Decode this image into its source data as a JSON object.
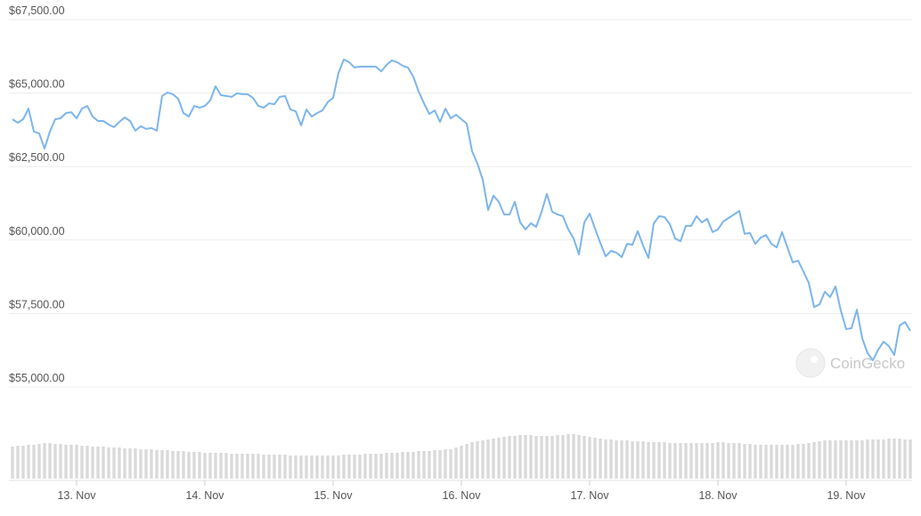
{
  "chart_data": {
    "type": "line",
    "series": [
      {
        "name": "Price",
        "color": "#7cb5ec",
        "values": [
          64110,
          63990,
          64110,
          64470,
          63690,
          63630,
          63110,
          63690,
          64110,
          64140,
          64320,
          64350,
          64140,
          64470,
          64560,
          64200,
          64050,
          64050,
          63930,
          63840,
          64020,
          64170,
          64050,
          63720,
          63870,
          63780,
          63810,
          63720,
          64900,
          65020,
          64960,
          64810,
          64320,
          64200,
          64560,
          64500,
          64560,
          64750,
          65230,
          64930,
          64900,
          64870,
          64990,
          64960,
          64960,
          64840,
          64560,
          64500,
          64650,
          64620,
          64870,
          64900,
          64440,
          64380,
          63900,
          64440,
          64200,
          64320,
          64410,
          64690,
          64840,
          65680,
          66140,
          66050,
          65870,
          65900,
          65900,
          65900,
          65900,
          65740,
          65960,
          66110,
          66050,
          65930,
          65870,
          65560,
          65050,
          64650,
          64290,
          64410,
          64020,
          64470,
          64140,
          64260,
          64110,
          63960,
          63020,
          62600,
          62050,
          61020,
          61510,
          61300,
          60870,
          60870,
          61300,
          60600,
          60360,
          60570,
          60450,
          60960,
          61570,
          60960,
          60870,
          60810,
          60360,
          60050,
          59510,
          60600,
          60900,
          60390,
          59900,
          59450,
          59630,
          59570,
          59420,
          59870,
          59840,
          60300,
          59810,
          59390,
          60570,
          60810,
          60780,
          60540,
          60050,
          59960,
          60480,
          60480,
          60810,
          60600,
          60720,
          60270,
          60360,
          60630,
          60750,
          60870,
          60990,
          60210,
          60240,
          59870,
          60080,
          60170,
          59870,
          59750,
          60270,
          59750,
          59240,
          59300,
          58930,
          58540,
          57720,
          57810,
          58240,
          58060,
          58420,
          57600,
          56970,
          57000,
          57630,
          56660,
          56150,
          55910,
          56270,
          56540,
          56390,
          56090,
          57090,
          57210,
          56910
        ]
      },
      {
        "name": "Volume",
        "color": "#d9d9d9",
        "axis": "y2",
        "values": [
          36,
          37,
          37,
          38,
          38,
          39,
          40,
          40,
          39,
          39,
          38,
          38,
          38,
          37,
          37,
          36,
          36,
          36,
          35,
          35,
          35,
          34,
          34,
          34,
          33,
          33,
          33,
          32,
          32,
          32,
          31,
          31,
          31,
          30,
          30,
          30,
          29,
          29,
          29,
          29,
          29,
          28,
          28,
          28,
          28,
          28,
          28,
          27,
          27,
          27,
          27,
          27,
          26,
          26,
          26,
          26,
          26,
          26,
          26,
          26,
          26,
          26,
          27,
          27,
          27,
          27,
          28,
          28,
          28,
          28,
          29,
          29,
          29,
          30,
          30,
          30,
          31,
          31,
          31,
          32,
          32,
          33,
          33,
          35,
          37,
          39,
          41,
          42,
          43,
          44,
          45,
          46,
          47,
          48,
          48,
          49,
          49,
          49,
          48,
          48,
          48,
          48,
          49,
          49,
          50,
          50,
          49,
          48,
          47,
          46,
          45,
          44,
          44,
          43,
          43,
          43,
          42,
          42,
          42,
          41,
          41,
          41,
          41,
          40,
          40,
          40,
          40,
          40,
          40,
          40,
          40,
          40,
          41,
          41,
          40,
          40,
          40,
          39,
          39,
          38,
          38,
          38,
          38,
          38,
          38,
          38,
          38,
          39,
          39,
          40,
          41,
          42,
          43,
          43,
          43,
          43,
          43,
          43,
          43,
          43,
          44,
          44,
          44,
          44,
          45,
          45,
          45,
          44,
          44
        ]
      }
    ],
    "xlim": [
      0,
      168
    ],
    "xticks": [
      {
        "value": 12,
        "label": "13. Nov"
      },
      {
        "value": 36,
        "label": "14. Nov"
      },
      {
        "value": 60,
        "label": "15. Nov"
      },
      {
        "value": 84,
        "label": "16. Nov"
      },
      {
        "value": 108,
        "label": "17. Nov"
      },
      {
        "value": 132,
        "label": "18. Nov"
      },
      {
        "value": 156,
        "label": "19. Nov"
      }
    ],
    "ylim": [
      55000,
      67500
    ],
    "yticks": [
      {
        "value": 55000,
        "label": "$55,000.00"
      },
      {
        "value": 57500,
        "label": "$57,500.00"
      },
      {
        "value": 60000,
        "label": "$60,000.00"
      },
      {
        "value": 62500,
        "label": "$62,500.00"
      },
      {
        "value": 65000,
        "label": "$65,000.00"
      },
      {
        "value": 67500,
        "label": "$67,500.00"
      }
    ],
    "y2lim": [
      0,
      60
    ],
    "grid": true,
    "watermark": "CoinGecko"
  }
}
